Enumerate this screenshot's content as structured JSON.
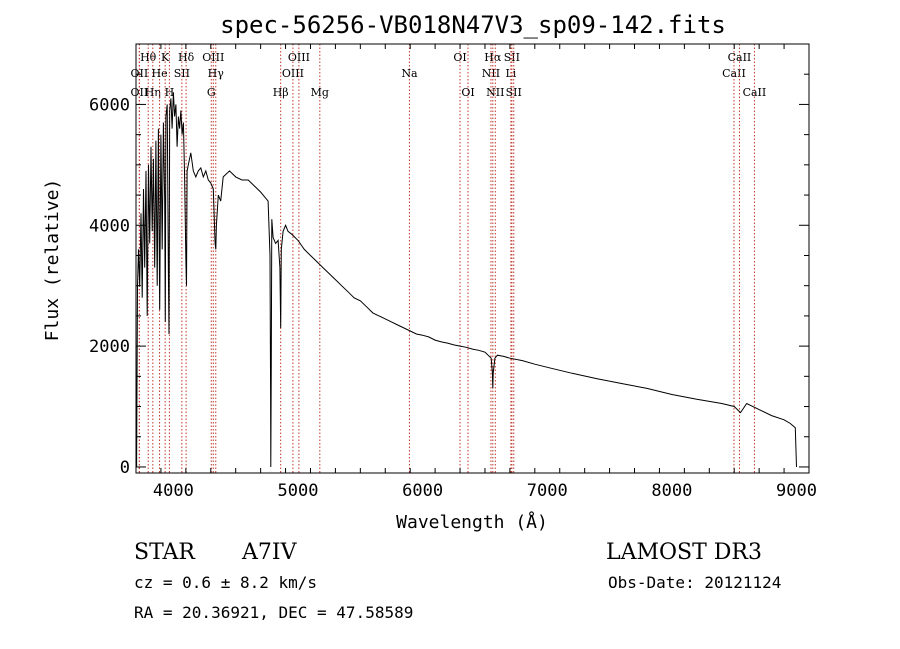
{
  "chart_data": {
    "type": "line",
    "title": "spec-56256-VB018N47V3_sp09-142.fits",
    "xlabel": "Wavelength (Å)",
    "ylabel": "Flux (relative)",
    "xlim": [
      3700,
      9100
    ],
    "ylim": [
      -100,
      7000
    ],
    "xticks": [
      4000,
      5000,
      6000,
      7000,
      8000,
      9000
    ],
    "yticks": [
      0,
      2000,
      4000,
      6000
    ],
    "line_color": "#000000",
    "marker_color": "#c0392b",
    "series": [
      {
        "name": "flux",
        "x": [
          3700,
          3705,
          3712,
          3720,
          3730,
          3740,
          3750,
          3760,
          3770,
          3780,
          3790,
          3800,
          3810,
          3820,
          3830,
          3840,
          3850,
          3860,
          3870,
          3880,
          3890,
          3900,
          3910,
          3920,
          3930,
          3935,
          3940,
          3950,
          3960,
          3965,
          3970,
          3980,
          3990,
          4000,
          4010,
          4020,
          4030,
          4040,
          4050,
          4060,
          4070,
          4080,
          4090,
          4100,
          4105,
          4110,
          4120,
          4140,
          4160,
          4180,
          4200,
          4220,
          4240,
          4260,
          4280,
          4300,
          4320,
          4335,
          4340,
          4345,
          4360,
          4380,
          4400,
          4450,
          4500,
          4550,
          4600,
          4650,
          4700,
          4720,
          4740,
          4760,
          4775,
          4780,
          4782,
          4786,
          4790,
          4800,
          4820,
          4840,
          4855,
          4861,
          4866,
          4880,
          4900,
          4920,
          4950,
          5000,
          5050,
          5100,
          5150,
          5200,
          5250,
          5300,
          5350,
          5400,
          5450,
          5500,
          5550,
          5600,
          5650,
          5700,
          5750,
          5800,
          5850,
          5900,
          5950,
          6000,
          6050,
          6100,
          6150,
          6200,
          6250,
          6300,
          6350,
          6400,
          6450,
          6500,
          6550,
          6560,
          6563,
          6566,
          6580,
          6600,
          6650,
          6700,
          6800,
          6900,
          7000,
          7200,
          7400,
          7600,
          7800,
          8000,
          8200,
          8400,
          8500,
          8550,
          8600,
          8700,
          8800,
          8900,
          8950,
          8990,
          9000
        ],
        "y": [
          1200,
          0,
          3000,
          3600,
          3000,
          4200,
          2800,
          4600,
          3300,
          4900,
          2500,
          5000,
          3700,
          5300,
          3900,
          5100,
          3300,
          5400,
          3000,
          5600,
          2600,
          5500,
          3600,
          5700,
          4400,
          2400,
          5800,
          6000,
          3200,
          2200,
          5900,
          6100,
          5600,
          6200,
          5800,
          6000,
          5300,
          5800,
          5600,
          5900,
          5500,
          5700,
          4800,
          3400,
          3000,
          4900,
          5000,
          5200,
          4900,
          4800,
          4900,
          4950,
          4800,
          4900,
          4750,
          4700,
          4600,
          3700,
          3600,
          4000,
          4500,
          4400,
          4800,
          4900,
          4800,
          4750,
          4750,
          4650,
          4550,
          4500,
          4450,
          4400,
          3500,
          1200,
          0,
          1800,
          4100,
          3800,
          3700,
          3750,
          3300,
          2300,
          3600,
          3900,
          4000,
          3900,
          3850,
          3750,
          3600,
          3500,
          3400,
          3300,
          3200,
          3100,
          3000,
          2900,
          2800,
          2750,
          2650,
          2550,
          2500,
          2450,
          2400,
          2350,
          2300,
          2250,
          2200,
          2180,
          2150,
          2100,
          2070,
          2050,
          2020,
          2000,
          1980,
          1950,
          1930,
          1900,
          1800,
          1550,
          1300,
          1550,
          1800,
          1850,
          1830,
          1800,
          1760,
          1700,
          1650,
          1550,
          1460,
          1380,
          1300,
          1200,
          1120,
          1050,
          1000,
          900,
          1050,
          950,
          850,
          780,
          720,
          650,
          0
        ]
      }
    ],
    "spectral_lines": [
      {
        "label": "OII",
        "x": 3727,
        "row": 2
      },
      {
        "label": "OII",
        "x": 3727,
        "row": 3
      },
      {
        "label": "Hθ",
        "x": 3798,
        "row": 1
      },
      {
        "label": "Hη",
        "x": 3835,
        "row": 3
      },
      {
        "label": "He",
        "x": 3889,
        "row": 2
      },
      {
        "label": "K",
        "x": 3934,
        "row": 1
      },
      {
        "label": "H",
        "x": 3968,
        "row": 3
      },
      {
        "label": "SII",
        "x": 4068,
        "row": 2
      },
      {
        "label": "Hδ",
        "x": 4102,
        "row": 1
      },
      {
        "label": "G",
        "x": 4304,
        "row": 3
      },
      {
        "label": "OIII",
        "x": 4320,
        "row": 1
      },
      {
        "label": "Hγ",
        "x": 4340,
        "row": 2
      },
      {
        "label": "Hβ",
        "x": 4861,
        "row": 3
      },
      {
        "label": "OIII",
        "x": 4959,
        "row": 2
      },
      {
        "label": "OIII",
        "x": 5007,
        "row": 1
      },
      {
        "label": "Mg",
        "x": 5175,
        "row": 3
      },
      {
        "label": "Na",
        "x": 5894,
        "row": 2
      },
      {
        "label": "OI",
        "x": 6300,
        "row": 1
      },
      {
        "label": "OI",
        "x": 6364,
        "row": 3
      },
      {
        "label": "NII",
        "x": 6548,
        "row": 2
      },
      {
        "label": "Hα",
        "x": 6563,
        "row": 1
      },
      {
        "label": "NII",
        "x": 6583,
        "row": 3
      },
      {
        "label": "Li",
        "x": 6708,
        "row": 2
      },
      {
        "label": "SII",
        "x": 6716,
        "row": 1
      },
      {
        "label": "SII",
        "x": 6731,
        "row": 3
      },
      {
        "label": "CaII",
        "x": 8498,
        "row": 2
      },
      {
        "label": "CaII",
        "x": 8542,
        "row": 1
      },
      {
        "label": "CaII",
        "x": 8662,
        "row": 3
      }
    ]
  },
  "info": {
    "class": "STAR",
    "subclass": "A7IV",
    "survey": "LAMOST DR3",
    "cz": "cz = 0.6 ± 8.2 km/s",
    "obs_date": "Obs-Date: 20121124",
    "coords": "RA =  20.36921, DEC =  47.58589"
  }
}
